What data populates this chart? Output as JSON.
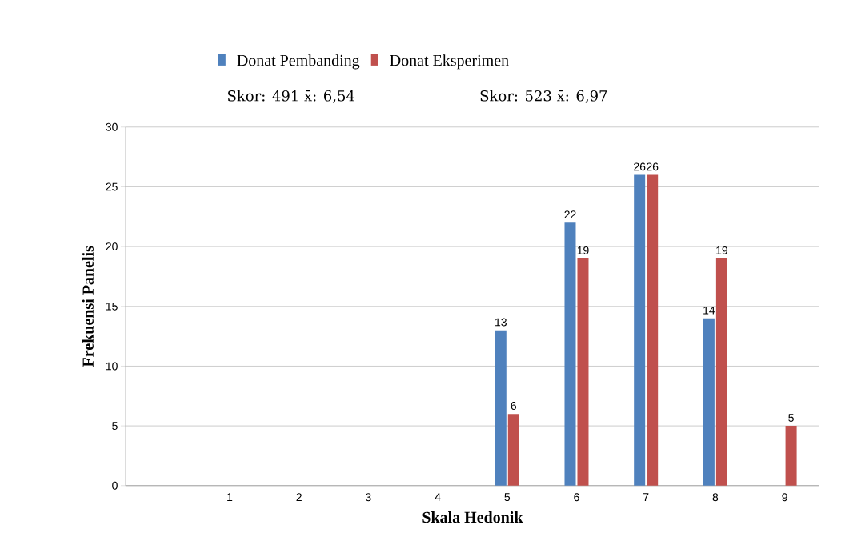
{
  "chart_data": {
    "type": "bar",
    "xlabel": "Skala Hedonik",
    "ylabel": "Frekuensi Panelis",
    "categories": [
      null,
      "1",
      "2",
      "3",
      "4",
      "5",
      "6",
      "7",
      "8",
      "9"
    ],
    "series": [
      {
        "name": "Donat Pembanding",
        "color": "#4f81bd",
        "values": [
          null,
          null,
          null,
          null,
          null,
          13,
          22,
          26,
          14,
          null
        ]
      },
      {
        "name": "Donat Eksperimen",
        "color": "#c0504d",
        "values": [
          null,
          null,
          null,
          null,
          null,
          6,
          19,
          26,
          19,
          5
        ]
      }
    ],
    "annotations": [
      "Skor: 491 x̄: 6,54",
      "Skor: 523 x̄: 6,97"
    ],
    "ylim": [
      0,
      30
    ],
    "yticks": [
      0,
      5,
      10,
      15,
      20,
      25,
      30
    ],
    "grid": "y",
    "legend": "top",
    "data_labels": true
  }
}
